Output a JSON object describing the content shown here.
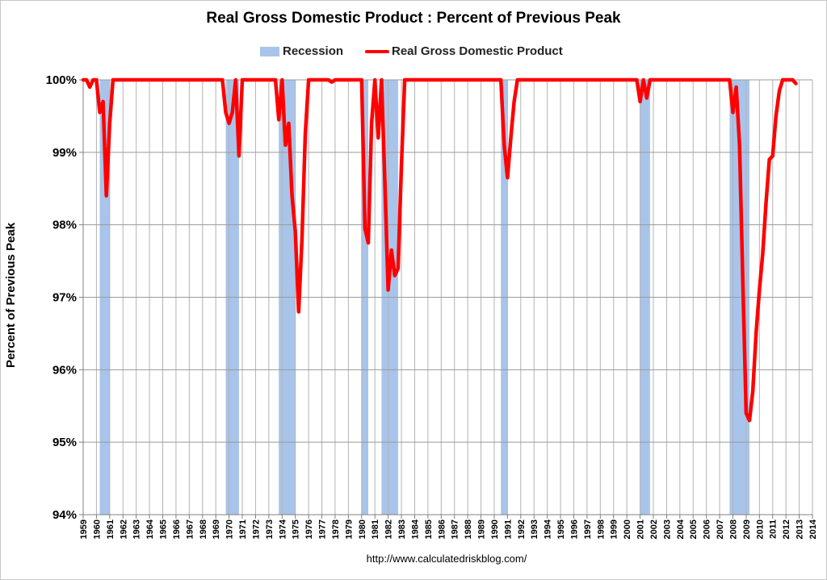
{
  "chart_data": {
    "type": "line",
    "title": "Real Gross Domestic Product : Percent of Previous Peak",
    "ylabel": "Percent of Previous Peak",
    "xlabel": "",
    "source": "http://www.calculatedriskblog.com/",
    "ylim": [
      94,
      100
    ],
    "xlim": [
      1959,
      2014
    ],
    "y_ticks": [
      "94%",
      "95%",
      "96%",
      "97%",
      "98%",
      "99%",
      "100%"
    ],
    "x_ticks": [
      "1959",
      "1960",
      "1961",
      "1962",
      "1963",
      "1964",
      "1965",
      "1966",
      "1967",
      "1968",
      "1969",
      "1970",
      "1971",
      "1972",
      "1973",
      "1974",
      "1975",
      "1976",
      "1977",
      "1978",
      "1979",
      "1980",
      "1981",
      "1982",
      "1983",
      "1984",
      "1985",
      "1986",
      "1987",
      "1988",
      "1989",
      "1990",
      "1991",
      "1992",
      "1993",
      "1994",
      "1995",
      "1996",
      "1997",
      "1998",
      "1999",
      "2000",
      "2001",
      "2002",
      "2003",
      "2004",
      "2005",
      "2006",
      "2007",
      "2008",
      "2009",
      "2010",
      "2011",
      "2012",
      "2013",
      "2014"
    ],
    "grid": true,
    "legend_position": "top",
    "recession_label": "Recession",
    "recessions": [
      [
        1960.25,
        1961.0
      ],
      [
        1969.75,
        1970.75
      ],
      [
        1973.75,
        1975.0
      ],
      [
        1980.0,
        1980.5
      ],
      [
        1981.5,
        1982.75
      ],
      [
        1990.5,
        1991.0
      ],
      [
        2001.0,
        2001.75
      ],
      [
        2007.75,
        2009.25
      ]
    ],
    "series": [
      {
        "name": "Real Gross Domestic Product",
        "color": "#ff0000",
        "points": [
          [
            1959.0,
            100
          ],
          [
            1959.25,
            100
          ],
          [
            1959.5,
            99.9
          ],
          [
            1959.75,
            100
          ],
          [
            1960.0,
            100
          ],
          [
            1960.25,
            99.55
          ],
          [
            1960.5,
            99.7
          ],
          [
            1960.75,
            98.4
          ],
          [
            1961.0,
            99.4
          ],
          [
            1961.25,
            100
          ],
          [
            1969.5,
            100
          ],
          [
            1969.75,
            99.55
          ],
          [
            1970.0,
            99.4
          ],
          [
            1970.25,
            99.55
          ],
          [
            1970.5,
            100
          ],
          [
            1970.75,
            98.95
          ],
          [
            1971.0,
            100
          ],
          [
            1973.5,
            100
          ],
          [
            1973.75,
            99.45
          ],
          [
            1974.0,
            100
          ],
          [
            1974.25,
            99.1
          ],
          [
            1974.5,
            99.4
          ],
          [
            1974.75,
            98.4
          ],
          [
            1975.0,
            97.9
          ],
          [
            1975.25,
            96.8
          ],
          [
            1975.5,
            97.8
          ],
          [
            1975.75,
            99.25
          ],
          [
            1976.0,
            100
          ],
          [
            1977.5,
            100
          ],
          [
            1977.75,
            99.97
          ],
          [
            1978.0,
            100
          ],
          [
            1980.0,
            100
          ],
          [
            1980.25,
            97.95
          ],
          [
            1980.5,
            97.75
          ],
          [
            1980.75,
            99.4
          ],
          [
            1981.0,
            100
          ],
          [
            1981.25,
            99.2
          ],
          [
            1981.5,
            100
          ],
          [
            1981.75,
            98.6
          ],
          [
            1982.0,
            97.1
          ],
          [
            1982.25,
            97.65
          ],
          [
            1982.5,
            97.3
          ],
          [
            1982.75,
            97.4
          ],
          [
            1983.0,
            98.8
          ],
          [
            1983.25,
            100
          ],
          [
            1990.5,
            100
          ],
          [
            1990.75,
            99.1
          ],
          [
            1991.0,
            98.65
          ],
          [
            1991.25,
            99.2
          ],
          [
            1991.5,
            99.7
          ],
          [
            1991.75,
            100
          ],
          [
            2000.75,
            100
          ],
          [
            2001.0,
            99.7
          ],
          [
            2001.25,
            100
          ],
          [
            2001.5,
            99.75
          ],
          [
            2001.75,
            100
          ],
          [
            2007.75,
            100
          ],
          [
            2008.0,
            99.55
          ],
          [
            2008.25,
            99.9
          ],
          [
            2008.5,
            99.1
          ],
          [
            2008.75,
            97.2
          ],
          [
            2009.0,
            95.4
          ],
          [
            2009.25,
            95.3
          ],
          [
            2009.5,
            95.7
          ],
          [
            2009.75,
            96.5
          ],
          [
            2010.0,
            97.1
          ],
          [
            2010.25,
            97.6
          ],
          [
            2010.5,
            98.3
          ],
          [
            2010.75,
            98.9
          ],
          [
            2011.0,
            98.95
          ],
          [
            2011.25,
            99.5
          ],
          [
            2011.5,
            99.85
          ],
          [
            2011.75,
            100
          ],
          [
            2012.0,
            100
          ],
          [
            2012.25,
            100
          ],
          [
            2012.5,
            100
          ],
          [
            2012.75,
            99.95
          ]
        ]
      }
    ]
  }
}
